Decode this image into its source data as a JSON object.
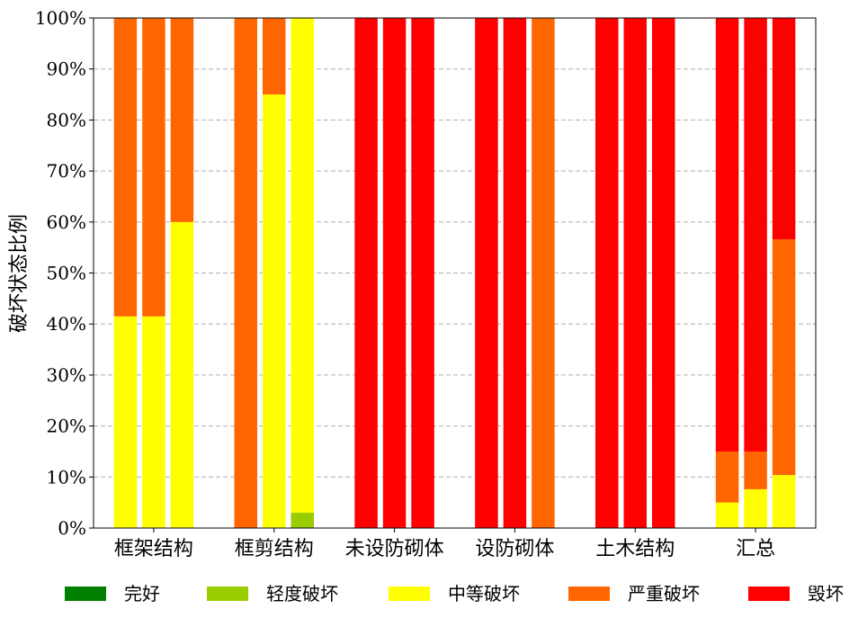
{
  "chart_data": {
    "type": "bar",
    "stacked": true,
    "ylabel": "破坏状态比例",
    "xlabel": "",
    "ylim": [
      0,
      100
    ],
    "yticks": [
      "0%",
      "10%",
      "20%",
      "30%",
      "40%",
      "50%",
      "60%",
      "70%",
      "80%",
      "90%",
      "100%"
    ],
    "grid": "horizontal dashed",
    "legend_position": "bottom",
    "categories": [
      "框架结构",
      "框剪结构",
      "未设防砌体",
      "设防砌体",
      "土木结构",
      "汇总"
    ],
    "bars_per_category": 3,
    "series": [
      {
        "name": "完好",
        "color": "#008000",
        "values": [
          [
            0,
            0,
            0
          ],
          [
            0,
            0,
            0
          ],
          [
            0,
            0,
            0
          ],
          [
            0,
            0,
            0
          ],
          [
            0,
            0,
            0
          ],
          [
            0,
            0,
            0
          ]
        ]
      },
      {
        "name": "轻度破坏",
        "color": "#9ACD00",
        "values": [
          [
            0,
            0,
            0
          ],
          [
            0,
            0,
            3
          ],
          [
            0,
            0,
            0
          ],
          [
            0,
            0,
            0
          ],
          [
            0,
            0,
            0
          ],
          [
            0,
            0,
            0
          ]
        ]
      },
      {
        "name": "中等破坏",
        "color": "#FFFF00",
        "values": [
          [
            41.5,
            41.5,
            60
          ],
          [
            0,
            85,
            97
          ],
          [
            0,
            0,
            0
          ],
          [
            0,
            0,
            0
          ],
          [
            0,
            0,
            0
          ],
          [
            5,
            7.6,
            10.4
          ]
        ]
      },
      {
        "name": "严重破坏",
        "color": "#FF6600",
        "values": [
          [
            58.5,
            58.5,
            40
          ],
          [
            100,
            15,
            0
          ],
          [
            0,
            0,
            0
          ],
          [
            0,
            0,
            100
          ],
          [
            0,
            0,
            0
          ],
          [
            10,
            7.4,
            46.2
          ]
        ]
      },
      {
        "name": "毁坏",
        "color": "#FF0000",
        "values": [
          [
            0,
            0,
            0
          ],
          [
            0,
            0,
            0
          ],
          [
            100,
            100,
            100
          ],
          [
            100,
            100,
            0
          ],
          [
            100,
            100,
            100
          ],
          [
            85,
            85,
            43.4
          ]
        ]
      }
    ]
  }
}
